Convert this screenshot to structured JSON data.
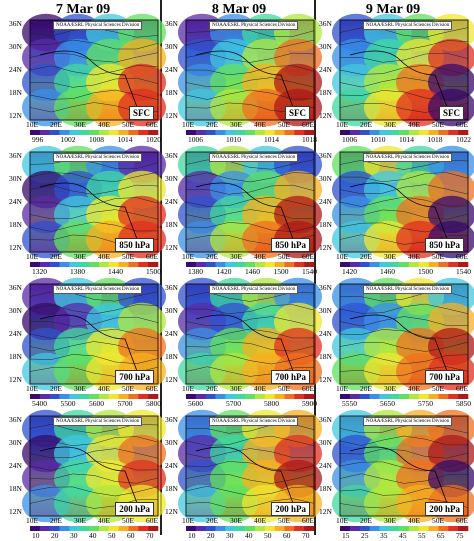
{
  "columns": [
    {
      "date": "7 Mar 09",
      "panels": [
        {
          "level": "SFC",
          "bar": [
            "996",
            "1002",
            "1008",
            "1014",
            "1020"
          ]
        },
        {
          "level": "850 hPa",
          "bar": [
            "1320",
            "1380",
            "1440",
            "1500"
          ]
        },
        {
          "level": "700 hPa",
          "bar": [
            "5400",
            "5500",
            "5600",
            "5700",
            "5800"
          ]
        },
        {
          "level": "200 hPa",
          "bar": [
            "10",
            "20",
            "30",
            "40",
            "50",
            "60",
            "70"
          ]
        }
      ]
    },
    {
      "date": "8 Mar 09",
      "panels": [
        {
          "level": "SFC",
          "bar": [
            "1006",
            "1010",
            "1014",
            "1018"
          ]
        },
        {
          "level": "850 hPa",
          "bar": [
            "1380",
            "1420",
            "1460",
            "1500",
            "1540"
          ]
        },
        {
          "level": "700 hPa",
          "bar": [
            "5600",
            "5700",
            "5800",
            "5900"
          ]
        },
        {
          "level": "200 hPa",
          "bar": [
            "10",
            "20",
            "30",
            "40",
            "50",
            "60",
            "70"
          ]
        }
      ]
    },
    {
      "date": "9 Mar 09",
      "panels": [
        {
          "level": "SFC",
          "bar": [
            "1006",
            "1010",
            "1014",
            "1018",
            "1022"
          ]
        },
        {
          "level": "850 hPa",
          "bar": [
            "1420",
            "1460",
            "1500",
            "1540"
          ]
        },
        {
          "level": "700 hPa",
          "bar": [
            "5550",
            "5650",
            "5750",
            "5850"
          ]
        },
        {
          "level": "200 hPa",
          "bar": [
            "15",
            "25",
            "35",
            "45",
            "55",
            "65",
            "75"
          ]
        }
      ]
    }
  ],
  "lat_labels": [
    "36N",
    "30N",
    "24N",
    "18N",
    "12N"
  ],
  "lon_labels": [
    "10E",
    "20E",
    "30E",
    "40E",
    "50E",
    "60E"
  ],
  "noaa_label": "NOAA/ESRL Physical Sciences Division",
  "colors": [
    "#3a0a6e",
    "#5a2aa8",
    "#3050d0",
    "#3a90e8",
    "#40c8e0",
    "#40d8a0",
    "#60e060",
    "#b0e840",
    "#f0e830",
    "#f8b020",
    "#f07020",
    "#e03020",
    "#b01818"
  ]
}
